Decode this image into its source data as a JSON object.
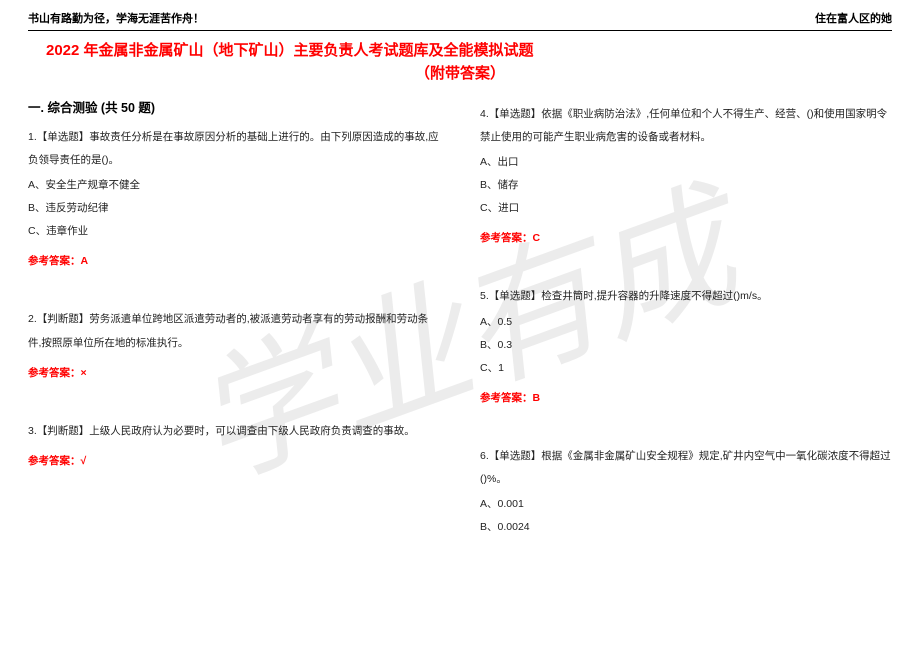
{
  "header": {
    "left": "书山有路勤为径，学海无涯苦作舟！",
    "right": "住在富人区的她"
  },
  "title": {
    "main": "2022 年金属非金属矿山（地下矿山）主要负责人考试题库及全能模拟试题",
    "sub": "（附带答案）"
  },
  "watermark": "学业有成",
  "section": "一. 综合测验 (共 50 题)",
  "left_col": {
    "q1": {
      "stem": "1.【单选题】事故责任分析是在事故原因分析的基础上进行的。由下列原因造成的事故,应负领导责任的是()。",
      "opts": [
        "A、安全生产规章不健全",
        "B、违反劳动纪律",
        "C、违章作业"
      ],
      "answer": "参考答案：A"
    },
    "q2": {
      "stem": "2.【判断题】劳务派遣单位跨地区派遣劳动者的,被派遣劳动者享有的劳动报酬和劳动条件,按照原单位所在地的标准执行。",
      "answer": "参考答案：×"
    },
    "q3": {
      "stem": "3.【判断题】上级人民政府认为必要时，可以调查由下级人民政府负责调查的事故。",
      "answer": "参考答案：√"
    }
  },
  "right_col": {
    "q4": {
      "stem": "4.【单选题】依据《职业病防治法》,任何单位和个人不得生产、经营、()和使用国家明令禁止使用的可能产生职业病危害的设备或者材料。",
      "opts": [
        "A、出口",
        "B、储存",
        "C、进口"
      ],
      "answer": "参考答案：C"
    },
    "q5": {
      "stem": "5.【单选题】检查井筒时,提升容器的升降速度不得超过()m/s。",
      "opts": [
        "A、0.5",
        "B、0.3",
        "C、1"
      ],
      "answer": "参考答案：B"
    },
    "q6": {
      "stem": "6.【单选题】根据《金属非金属矿山安全规程》规定,矿井内空气中一氧化碳浓度不得超过()%。",
      "opts": [
        "A、0.001",
        "B、0.0024"
      ]
    }
  }
}
